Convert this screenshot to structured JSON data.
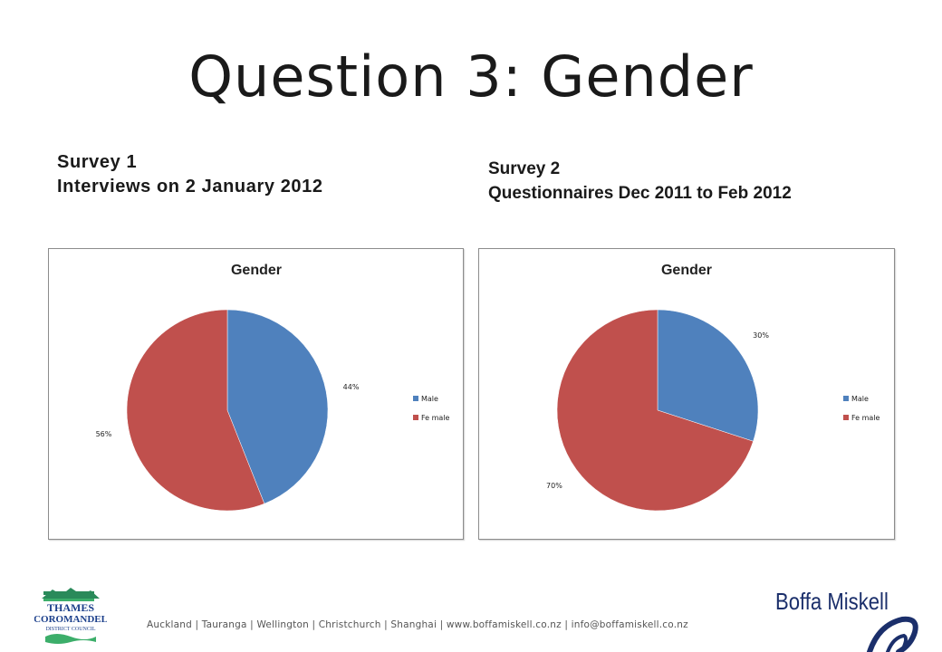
{
  "slide": {
    "title": "Question 3: Gender"
  },
  "survey1": {
    "heading_line1": "Survey 1",
    "heading_line2": "Interviews on 2 January 2012"
  },
  "survey2": {
    "heading_line1": "Survey 2",
    "heading_line2": "Questionnaires Dec 2011 to Feb 2012"
  },
  "chart_data": [
    {
      "type": "pie",
      "title": "Gender",
      "categories": [
        "Male",
        "Fe male"
      ],
      "values": [
        44,
        56
      ],
      "data_labels": [
        "44%",
        "56%"
      ],
      "colors": [
        "#4f81bd",
        "#c0504d"
      ],
      "legend": "right"
    },
    {
      "type": "pie",
      "title": "Gender",
      "categories": [
        "Male",
        "Fe male"
      ],
      "values": [
        30,
        70
      ],
      "data_labels": [
        "30%",
        "70%"
      ],
      "colors": [
        "#4f81bd",
        "#c0504d"
      ],
      "legend": "right"
    }
  ],
  "footer": {
    "text": "Auckland  |  Tauranga  |  Wellington  |  Christchurch  |  Shanghai  |  www.boffamiskell.co.nz  |  info@boffamiskell.co.nz"
  },
  "logos": {
    "left": {
      "line1": "THAMES",
      "line2": "COROMANDEL",
      "line3": "DISTRICT COUNCIL",
      "colors": [
        "#2a8a5a",
        "#1b3f8b",
        "#3cae6a"
      ]
    },
    "right": {
      "text": "Boffa Miskell",
      "color": "#1b2f6b"
    }
  }
}
